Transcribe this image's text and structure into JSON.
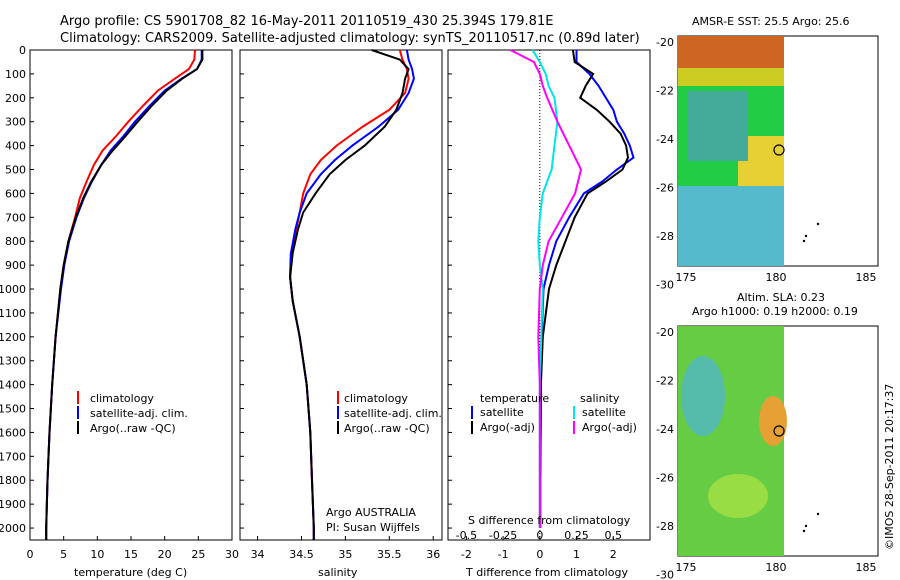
{
  "header": {
    "line1": "Argo profile: CS 5901708_82 16-May-2011 20110519_430 25.394S 179.81E",
    "line2": "Climatology: CARS2009. Satellite-adjusted climatology: synTS_20110517.nc (0.89d later)"
  },
  "colors": {
    "climatology": "#ff0000",
    "satellite": "#0000ff",
    "argo": "#000000",
    "salinity_satellite": "#00e5e5",
    "salinity_argo": "#ff00ff"
  },
  "depth_ticks": [
    "0",
    "100",
    "200",
    "300",
    "400",
    "500",
    "600",
    "700",
    "800",
    "900",
    "1000",
    "1100",
    "1200",
    "1300",
    "1400",
    "1500",
    "1600",
    "1700",
    "1800",
    "1900",
    "2000"
  ],
  "panels": {
    "temperature": {
      "xlabel": "temperature (deg C)",
      "xticks": [
        "0",
        "5",
        "10",
        "15",
        "20",
        "25",
        "30"
      ],
      "legend": [
        "climatology",
        "satellite-adj. clim.",
        "Argo(..raw -QC)"
      ]
    },
    "salinity": {
      "xlabel": "salinity",
      "xticks": [
        "34",
        "34.5",
        "35",
        "35.5",
        "36"
      ],
      "legend": [
        "climatology",
        "satellite-adj. clim.",
        "Argo(..raw -QC)"
      ],
      "credit1": "Argo AUSTRALIA",
      "credit2": "PI: Susan Wijffels"
    },
    "difference": {
      "xlabel": "T difference from climatology",
      "toplabel": "S difference from climatology",
      "xticks_T": [
        "-2",
        "-1",
        "0",
        "1",
        "2"
      ],
      "xticks_S": [
        "-0.5",
        "-0.25",
        "0",
        "0.25",
        "0.5"
      ],
      "legend_T_head": "temperature",
      "legend_T": [
        "satellite",
        "Argo(-adj)"
      ],
      "legend_S_head": "salinity",
      "legend_S": [
        "satellite",
        "Argo(-adj)"
      ]
    }
  },
  "maps": {
    "sst_title": "AMSR-E SST: 25.5 Argo: 25.6",
    "sla_title1": "Altim. SLA: 0.23",
    "sla_title2": "Argo h1000: 0.19 h2000: 0.19",
    "yticks": [
      "-20",
      "-22",
      "-24",
      "-26",
      "-28",
      "-30"
    ],
    "xticks": [
      "175",
      "180",
      "185"
    ]
  },
  "copyright": "©IMOS 28-Sep-2011 20:17:37",
  "chart_data": [
    {
      "type": "line",
      "xlabel": "temperature (deg C)",
      "ylabel": "",
      "xlim": [
        0,
        30
      ],
      "ylim": [
        2050,
        0
      ],
      "series": [
        {
          "name": "climatology",
          "depth": [
            0,
            40,
            80,
            120,
            170,
            230,
            300,
            360,
            420,
            480,
            550,
            620,
            700,
            800,
            900,
            1000,
            1200,
            1400,
            1600,
            1800,
            2000,
            2050
          ],
          "values": [
            24.5,
            24.4,
            23.6,
            21.5,
            19,
            16.9,
            14.6,
            12.8,
            10.8,
            9.5,
            8.4,
            7.4,
            6.7,
            5.7,
            5.0,
            4.5,
            3.8,
            3.3,
            2.9,
            2.6,
            2.4,
            2.4
          ]
        },
        {
          "name": "satellite-adj. clim.",
          "depth": [
            0,
            40,
            80,
            120,
            170,
            230,
            300,
            360,
            420,
            480,
            550,
            620,
            700,
            800,
            900,
            1000,
            1200,
            1400,
            1600,
            1800,
            2000,
            2050
          ],
          "values": [
            25.5,
            25.5,
            24.8,
            22.5,
            20,
            17.9,
            15.6,
            13.9,
            12,
            10.6,
            9.2,
            8,
            6.9,
            5.8,
            5.1,
            4.6,
            3.8,
            3.3,
            2.9,
            2.6,
            2.4,
            2.4
          ]
        },
        {
          "name": "Argo(..raw -QC)",
          "depth": [
            0,
            40,
            80,
            120,
            170,
            230,
            300,
            360,
            420,
            480,
            550,
            620,
            700,
            800,
            900,
            1000,
            1200,
            1400,
            1600,
            1800,
            2000,
            2050
          ],
          "values": [
            25.6,
            25.6,
            24.8,
            22.6,
            20.3,
            18.2,
            16,
            14.2,
            12.3,
            10.6,
            9.1,
            7.9,
            6.8,
            5.7,
            5.0,
            4.5,
            3.8,
            3.3,
            2.9,
            2.6,
            2.4,
            2.4
          ]
        }
      ]
    },
    {
      "type": "line",
      "xlabel": "salinity",
      "xlim": [
        33.8,
        36.1
      ],
      "ylim": [
        2050,
        0
      ],
      "series": [
        {
          "name": "climatology",
          "depth": [
            0,
            40,
            80,
            120,
            180,
            250,
            320,
            400,
            460,
            520,
            600,
            680,
            750,
            850,
            950,
            1050,
            1200,
            1400,
            1600,
            1800,
            2000,
            2050
          ],
          "values": [
            35.62,
            35.65,
            35.7,
            35.72,
            35.68,
            35.5,
            35.2,
            34.9,
            34.72,
            34.6,
            34.52,
            34.48,
            34.44,
            34.38,
            34.37,
            34.4,
            34.48,
            34.56,
            34.6,
            34.62,
            34.64,
            34.64
          ]
        },
        {
          "name": "satellite-adj. clim.",
          "depth": [
            0,
            40,
            80,
            120,
            180,
            250,
            320,
            400,
            460,
            520,
            600,
            680,
            750,
            850,
            950,
            1050,
            1200,
            1400,
            1600,
            1800,
            2000,
            2050
          ],
          "values": [
            35.7,
            35.72,
            35.76,
            35.78,
            35.72,
            35.6,
            35.38,
            35.08,
            34.88,
            34.72,
            34.56,
            34.48,
            34.43,
            34.38,
            34.37,
            34.4,
            34.48,
            34.56,
            34.6,
            34.62,
            34.64,
            34.64
          ]
        },
        {
          "name": "Argo(..raw -QC)",
          "depth": [
            0,
            40,
            80,
            120,
            180,
            250,
            320,
            400,
            460,
            520,
            600,
            680,
            750,
            850,
            950,
            1050,
            1200,
            1400,
            1600,
            1800,
            2000,
            2050
          ],
          "values": [
            35.3,
            35.62,
            35.72,
            35.68,
            35.65,
            35.58,
            35.45,
            35.22,
            35.0,
            34.82,
            34.66,
            34.52,
            34.46,
            34.4,
            34.37,
            34.4,
            34.48,
            34.56,
            34.6,
            34.62,
            34.64,
            34.64
          ]
        }
      ]
    },
    {
      "type": "line",
      "xlabel": "T difference from climatology",
      "xlim": [
        -2.5,
        3
      ],
      "ylim": [
        2050,
        0
      ],
      "series": [
        {
          "name": "satellite",
          "depth": [
            0,
            50,
            100,
            150,
            200,
            250,
            300,
            350,
            400,
            450,
            500,
            550,
            600,
            700,
            800,
            900,
            1000,
            1200,
            1400,
            1600,
            1800,
            2000
          ],
          "values": [
            1.0,
            1.0,
            1.35,
            1.6,
            1.8,
            2.0,
            2.1,
            2.3,
            2.45,
            2.55,
            2.1,
            1.7,
            1.2,
            0.8,
            0.45,
            0.25,
            0.1,
            0.05,
            0.03,
            0.02,
            0.01,
            0.01
          ]
        },
        {
          "name": "Argo(-adj)",
          "depth": [
            0,
            50,
            100,
            150,
            200,
            250,
            300,
            350,
            400,
            450,
            500,
            550,
            600,
            700,
            800,
            900,
            1000,
            1200,
            1400,
            1600,
            1800,
            2000
          ],
          "values": [
            0.9,
            0.95,
            1.45,
            1.25,
            1.1,
            1.55,
            1.9,
            2.2,
            2.35,
            2.4,
            2.25,
            1.8,
            1.3,
            0.95,
            0.7,
            0.45,
            0.25,
            0.08,
            0.03,
            0.02,
            0.01,
            0.01
          ]
        }
      ]
    },
    {
      "type": "line",
      "xlabel": "S difference from climatology",
      "xlim": [
        -0.625,
        0.75
      ],
      "ylim": [
        2050,
        0
      ],
      "series": [
        {
          "name": "satellite",
          "depth": [
            0,
            50,
            100,
            150,
            200,
            300,
            400,
            500,
            600,
            700,
            800,
            900,
            1000,
            1200,
            1400,
            1600,
            1800,
            2000
          ],
          "values": [
            -0.05,
            0.0,
            0.04,
            0.06,
            0.1,
            0.12,
            0.1,
            0.08,
            0.02,
            0.0,
            -0.01,
            0.0,
            0.02,
            0.01,
            0.0,
            0.0,
            0.0,
            0.0
          ]
        },
        {
          "name": "Argo(-adj)",
          "depth": [
            0,
            50,
            100,
            150,
            200,
            300,
            400,
            500,
            600,
            700,
            800,
            900,
            1000,
            1200,
            1400,
            1600,
            1800,
            2000
          ],
          "values": [
            -0.2,
            -0.04,
            0.0,
            0.02,
            0.05,
            0.12,
            0.2,
            0.28,
            0.24,
            0.15,
            0.06,
            0.02,
            0.0,
            -0.01,
            0.0,
            0.0,
            0.0,
            0.0
          ]
        }
      ]
    }
  ]
}
